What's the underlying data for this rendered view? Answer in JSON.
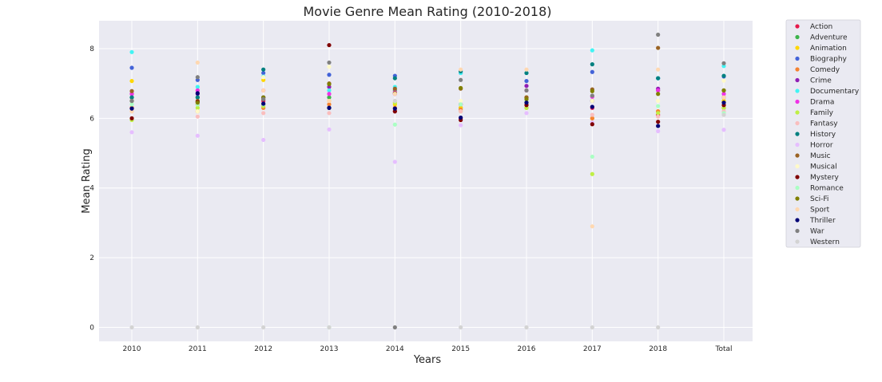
{
  "chart_data": {
    "type": "scatter",
    "title": "Movie Genre Mean Rating (2010-2018)",
    "xlabel": "Years",
    "ylabel": "Mean Rating",
    "categories": [
      "2010",
      "2011",
      "2012",
      "2013",
      "2014",
      "2015",
      "2016",
      "2017",
      "2018",
      "Total"
    ],
    "ylim": [
      -0.4,
      8.8
    ],
    "yticks": [
      0,
      2,
      4,
      6,
      8
    ],
    "grid": true,
    "legend_position": "outside-top-right",
    "series": [
      {
        "name": "Action",
        "color": "#e6194b",
        "values": [
          6.3,
          6.4,
          6.5,
          6.3,
          6.2,
          6.0,
          6.4,
          6.3,
          6.1,
          6.3
        ]
      },
      {
        "name": "Adventure",
        "color": "#3cb44b",
        "values": [
          6.6,
          6.6,
          6.6,
          6.6,
          6.8,
          6.3,
          6.6,
          6.5,
          6.8,
          6.6
        ]
      },
      {
        "name": "Animation",
        "color": "#ffd700",
        "values": [
          7.07,
          6.8,
          7.1,
          6.5,
          6.4,
          6.3,
          6.6,
          6.0,
          6.2,
          6.5
        ]
      },
      {
        "name": "Biography",
        "color": "#4363d8",
        "values": [
          7.45,
          7.1,
          7.3,
          7.25,
          7.22,
          7.3,
          7.07,
          7.33,
          7.15,
          7.2
        ]
      },
      {
        "name": "Comedy",
        "color": "#f58231",
        "values": [
          6.3,
          6.2,
          6.3,
          6.4,
          6.3,
          6.25,
          6.3,
          6.0,
          6.2,
          6.3
        ]
      },
      {
        "name": "Crime",
        "color": "#911eb4",
        "values": [
          6.7,
          6.7,
          6.6,
          6.9,
          6.7,
          6.4,
          6.93,
          6.5,
          6.85,
          6.6
        ]
      },
      {
        "name": "Documentary",
        "color": "#42f4f4",
        "values": [
          7.9,
          6.9,
          7.2,
          6.8,
          6.9,
          7.3,
          7.3,
          7.95,
          7.15,
          7.5
        ]
      },
      {
        "name": "Drama",
        "color": "#f032e6",
        "values": [
          6.7,
          6.8,
          6.8,
          6.7,
          6.75,
          6.4,
          6.8,
          6.62,
          6.8,
          6.7
        ]
      },
      {
        "name": "Family",
        "color": "#bfef45",
        "values": [
          5.95,
          6.3,
          6.35,
          6.3,
          6.45,
          6.2,
          6.3,
          4.4,
          6.15,
          6.3
        ]
      },
      {
        "name": "Fantasy",
        "color": "#fabebe",
        "values": [
          6.2,
          6.05,
          6.15,
          6.15,
          6.25,
          6.2,
          6.4,
          6.1,
          6.05,
          6.2
        ]
      },
      {
        "name": "History",
        "color": "#008080",
        "values": [
          6.6,
          6.6,
          7.4,
          6.3,
          7.15,
          7.35,
          7.3,
          7.55,
          7.15,
          7.22
        ]
      },
      {
        "name": "Horror",
        "color": "#e6beff",
        "values": [
          5.6,
          5.5,
          5.38,
          5.68,
          4.75,
          5.8,
          6.15,
          5.88,
          5.63,
          5.67
        ]
      },
      {
        "name": "Music",
        "color": "#9a6324",
        "values": [
          6.78,
          6.5,
          6.55,
          7.0,
          6.85,
          6.85,
          6.6,
          6.83,
          8.02,
          6.8
        ]
      },
      {
        "name": "Musical",
        "color": "#fffac8",
        "values": [
          6.5,
          6.2,
          7.18,
          7.48,
          6.5,
          6.5,
          6.5,
          6.5,
          6.5,
          7.08
        ]
      },
      {
        "name": "Mystery",
        "color": "#800000",
        "values": [
          6.0,
          6.47,
          6.4,
          8.1,
          6.2,
          5.95,
          6.38,
          5.83,
          5.9,
          6.38
        ]
      },
      {
        "name": "Romance",
        "color": "#aaffc3",
        "values": [
          6.4,
          6.4,
          6.4,
          0.0,
          5.82,
          6.4,
          6.5,
          4.9,
          6.35,
          6.15
        ]
      },
      {
        "name": "Sci-Fi",
        "color": "#808000",
        "values": [
          6.5,
          6.45,
          6.6,
          6.98,
          6.72,
          6.87,
          6.55,
          6.78,
          6.7,
          6.8
        ]
      },
      {
        "name": "Sport",
        "color": "#ffd8b1",
        "values": [
          6.2,
          7.6,
          6.8,
          6.5,
          6.7,
          7.4,
          7.4,
          2.9,
          7.4,
          6.6
        ]
      },
      {
        "name": "Thriller",
        "color": "#000075",
        "values": [
          6.28,
          6.72,
          6.42,
          6.3,
          6.28,
          6.02,
          6.45,
          6.33,
          5.78,
          6.45
        ]
      },
      {
        "name": "War",
        "color": "#808080",
        "values": [
          6.5,
          7.18,
          6.55,
          7.6,
          0.0,
          7.1,
          6.8,
          6.65,
          8.4,
          7.58
        ]
      },
      {
        "name": "Western",
        "color": "#d3d3d3",
        "values": [
          0.0,
          0.0,
          0.0,
          0.0,
          6.5,
          0.0,
          0.0,
          0.0,
          0.0,
          6.1
        ]
      }
    ]
  }
}
